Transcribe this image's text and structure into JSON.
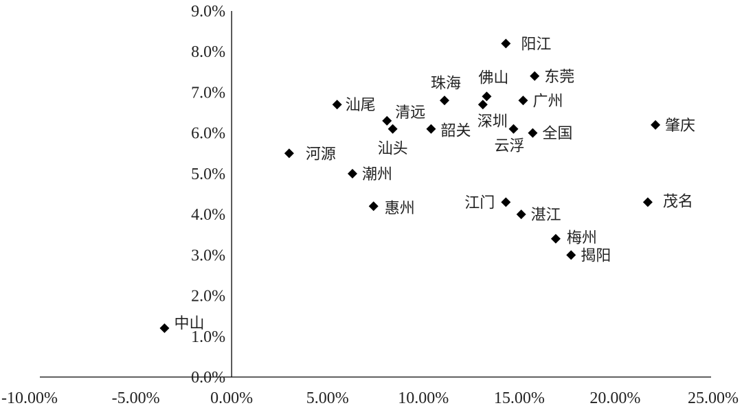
{
  "chart_data": {
    "type": "scatter",
    "title": "",
    "xlabel": "",
    "ylabel": "",
    "xlim": [
      -0.1,
      0.25
    ],
    "ylim": [
      0.0,
      0.09
    ],
    "x_ticks": [
      "-10.00%",
      "-5.00%",
      "0.00%",
      "5.00%",
      "10.00%",
      "15.00%",
      "20.00%",
      "25.00%"
    ],
    "y_ticks": [
      "0.0%",
      "1.0%",
      "2.0%",
      "3.0%",
      "4.0%",
      "5.0%",
      "6.0%",
      "7.0%",
      "8.0%",
      "9.0%"
    ],
    "grid": false,
    "marker": "diamond",
    "marker_color": "#000000",
    "points": [
      {
        "name": "阳江",
        "x": 0.143,
        "y": 0.082
      },
      {
        "name": "东莞",
        "x": 0.158,
        "y": 0.074
      },
      {
        "name": "佛山",
        "x": 0.133,
        "y": 0.069
      },
      {
        "name": "珠海",
        "x": 0.111,
        "y": 0.068
      },
      {
        "name": "广州",
        "x": 0.152,
        "y": 0.068
      },
      {
        "name": "汕尾",
        "x": 0.055,
        "y": 0.067
      },
      {
        "name": "深圳",
        "x": 0.131,
        "y": 0.067
      },
      {
        "name": "清远",
        "x": 0.081,
        "y": 0.063
      },
      {
        "name": "肇庆",
        "x": 0.221,
        "y": 0.062
      },
      {
        "name": "汕头",
        "x": 0.084,
        "y": 0.061
      },
      {
        "name": "韶关",
        "x": 0.104,
        "y": 0.061
      },
      {
        "name": "云浮",
        "x": 0.147,
        "y": 0.061
      },
      {
        "name": "全国",
        "x": 0.157,
        "y": 0.06
      },
      {
        "name": "河源",
        "x": 0.03,
        "y": 0.055
      },
      {
        "name": "潮州",
        "x": 0.063,
        "y": 0.05
      },
      {
        "name": "惠州",
        "x": 0.074,
        "y": 0.042
      },
      {
        "name": "江门",
        "x": 0.143,
        "y": 0.043
      },
      {
        "name": "茂名",
        "x": 0.217,
        "y": 0.043
      },
      {
        "name": "湛江",
        "x": 0.151,
        "y": 0.04
      },
      {
        "name": "梅州",
        "x": 0.169,
        "y": 0.034
      },
      {
        "name": "揭阳",
        "x": 0.177,
        "y": 0.03
      },
      {
        "name": "中山",
        "x": -0.035,
        "y": 0.012
      }
    ]
  }
}
